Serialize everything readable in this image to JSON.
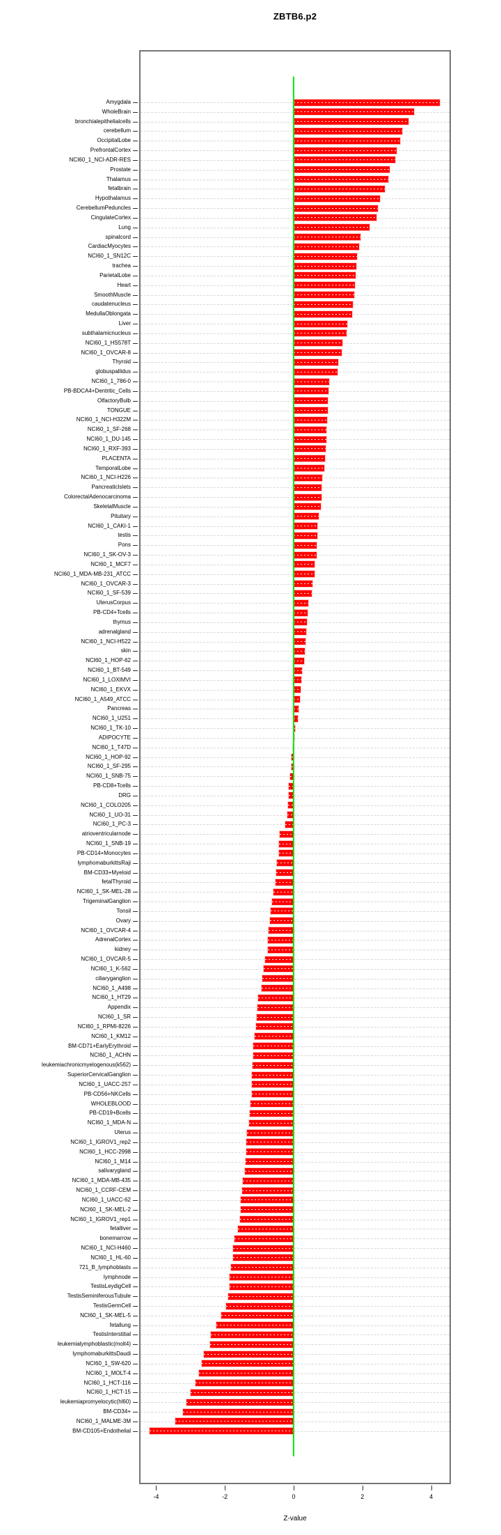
{
  "chart_data": {
    "type": "bar",
    "orientation": "horizontal",
    "title": "ZBTB6.p2",
    "xlabel": "Z-value",
    "x_ticks": [
      -4,
      -2,
      0,
      2,
      4
    ],
    "xlim": [
      -4.5,
      4.6
    ],
    "grid": "horizontal dashed line per category",
    "legend": "none",
    "bar_color": "#ff0000",
    "zero_line_color": "#00ee00",
    "categories": [
      "Amygdala",
      "WholeBrain",
      "bronchialepithelialcells",
      "cerebellum",
      "OccipitalLobe",
      "PrefrontalCortex",
      "NCI60_1_NCI-ADR-RES",
      "Prostate",
      "Thalamus",
      "fetalbrain",
      "Hypothalamus",
      "CerebellumPeduncles",
      "CingulateCortex",
      "Lung",
      "spinalcord",
      "CardiacMyocytes",
      "NCI60_1_SN12C",
      "trachea",
      "ParietalLobe",
      "Heart",
      "SmoothMuscle",
      "caudatenucleus",
      "MedullaOblongata",
      "Liver",
      "subthalamicnucleus",
      "NCI60_1_HS578T",
      "NCI60_1_OVCAR-8",
      "Thyroid",
      "globuspallidus",
      "NCI60_1_786-0",
      "PB-BDCA4+Dentritic_Cells",
      "OlfactoryBulb",
      "TONGUE",
      "NCI60_1_NCI-H322M",
      "NCI60_1_SF-268",
      "NCI60_1_DU-145",
      "NCI60_1_RXF-393",
      "PLACENTA",
      "TemporalLobe",
      "NCI60_1_NCI-H226",
      "PancreaticIslets",
      "ColorectalAdenocarcinoma",
      "SkeletalMuscle",
      "Pituitary",
      "NCI60_1_CAKI-1",
      "testis",
      "Pons",
      "NCI60_1_SK-OV-3",
      "NCI60_1_MCF7",
      "NCI60_1_MDA-MB-231_ATCC",
      "NCI60_1_OVCAR-3",
      "NCI60_1_SF-539",
      "UterusCorpus",
      "PB-CD4+Tcells",
      "thymus",
      "adrenalgland",
      "NCI60_1_NCI-H522",
      "skin",
      "NCI60_1_HOP-62",
      "NCI60_1_BT-549",
      "NCI60_1_LOXIMVI",
      "NCI60_1_EKVX",
      "NCI60_1_A549_ATCC",
      "Pancreas",
      "NCI60_1_U251",
      "NCI60_1_TK-10",
      "ADIPOCYTE",
      "NCI60_1_T47D",
      "NCI60_1_HOP-92",
      "NCI60_1_SF-295",
      "NCI60_1_SNB-75",
      "PB-CD8+Tcells",
      "DRG",
      "NCI60_1_COLO205",
      "NCI60_1_UO-31",
      "NCI60_1_PC-3",
      "atrioventricularnode",
      "NCI60_1_SNB-19",
      "PB-CD14+Monocytes",
      "lymphomaburkittsRaji",
      "BM-CD33+Myeloid",
      "fetalThyroid",
      "NCI60_1_SK-MEL-28",
      "TrigeminalGanglion",
      "Tonsil",
      "Ovary",
      "NCI60_1_OVCAR-4",
      "AdrenalCortex",
      "kidney",
      "NCI60_1_OVCAR-5",
      "NCI60_1_K-562",
      "ciliaryganglion",
      "NCI60_1_A498",
      "NCI60_1_HT29",
      "Appendix",
      "NCI60_1_SR",
      "NCI60_1_RPMI-8226",
      "NCI60_1_KM12",
      "BM-CD71+EarlyErythroid",
      "NCI60_1_ACHN",
      "leukemiachronicmyelogenous(k562)",
      "SuperiorCervicalGanglion",
      "NCI60_1_UACC-257",
      "PB-CD56+NKCells",
      "WHOLEBLOOD",
      "PB-CD19+Bcells",
      "NCI60_1_MDA-N",
      "Uterus",
      "NCI60_1_IGROV1_rep2",
      "NCI60_1_HCC-2998",
      "NCI60_1_M14",
      "salivarygland",
      "NCI60_1_MDA-MB-435",
      "NCI60_1_CCRF-CEM",
      "NCI60_1_UACC-62",
      "NCI60_1_SK-MEL-2",
      "NCI60_1_IGROV1_rep1",
      "fetalliver",
      "bonemarrow",
      "NCI60_1_NCI-H460",
      "NCI60_1_HL-60",
      "721_B_lymphoblasts",
      "lymphnode",
      "TestisLeydigCell",
      "TestisSeminiferousTubule",
      "TestisGermCell",
      "NCI60_1_SK-MEL-5",
      "fetallung",
      "TestisInterstitial",
      "leukemialymphoblastic(molt4)",
      "lymphomaburkittsDaudi",
      "NCI60_1_SW-620",
      "NCI60_1_MOLT-4",
      "NCI60_1_HCT-116",
      "NCI60_1_HCT-15",
      "leukemiapromyelocytic(hl60)",
      "BM-CD34+",
      "NCI60_1_MALME-3M",
      "BM-CD105+Endothelial"
    ],
    "values": [
      4.25,
      3.5,
      3.35,
      3.15,
      3.1,
      3.0,
      2.95,
      2.8,
      2.75,
      2.65,
      2.5,
      2.45,
      2.4,
      2.2,
      1.95,
      1.9,
      1.85,
      1.82,
      1.8,
      1.78,
      1.77,
      1.73,
      1.7,
      1.55,
      1.53,
      1.42,
      1.4,
      1.3,
      1.27,
      1.03,
      1.02,
      1.0,
      1.0,
      0.98,
      0.96,
      0.95,
      0.93,
      0.92,
      0.89,
      0.82,
      0.8,
      0.8,
      0.78,
      0.73,
      0.69,
      0.68,
      0.67,
      0.66,
      0.61,
      0.6,
      0.55,
      0.53,
      0.43,
      0.41,
      0.38,
      0.36,
      0.35,
      0.32,
      0.3,
      0.24,
      0.22,
      0.2,
      0.19,
      0.14,
      0.13,
      0.05,
      -0.01,
      -0.03,
      -0.06,
      -0.07,
      -0.1,
      -0.14,
      -0.15,
      -0.16,
      -0.18,
      -0.24,
      -0.4,
      -0.43,
      -0.43,
      -0.49,
      -0.51,
      -0.52,
      -0.58,
      -0.63,
      -0.67,
      -0.68,
      -0.72,
      -0.74,
      -0.74,
      -0.83,
      -0.88,
      -0.91,
      -0.93,
      -1.03,
      -1.05,
      -1.08,
      -1.09,
      -1.13,
      -1.17,
      -1.17,
      -1.2,
      -1.21,
      -1.22,
      -1.22,
      -1.25,
      -1.28,
      -1.29,
      -1.35,
      -1.37,
      -1.37,
      -1.39,
      -1.41,
      -1.48,
      -1.5,
      -1.53,
      -1.54,
      -1.55,
      -1.61,
      -1.73,
      -1.76,
      -1.77,
      -1.82,
      -1.87,
      -1.87,
      -1.91,
      -1.96,
      -2.11,
      -2.25,
      -2.4,
      -2.42,
      -2.62,
      -2.68,
      -2.76,
      -2.85,
      -3.0,
      -3.12,
      -3.21,
      -3.44,
      -4.2
    ]
  }
}
